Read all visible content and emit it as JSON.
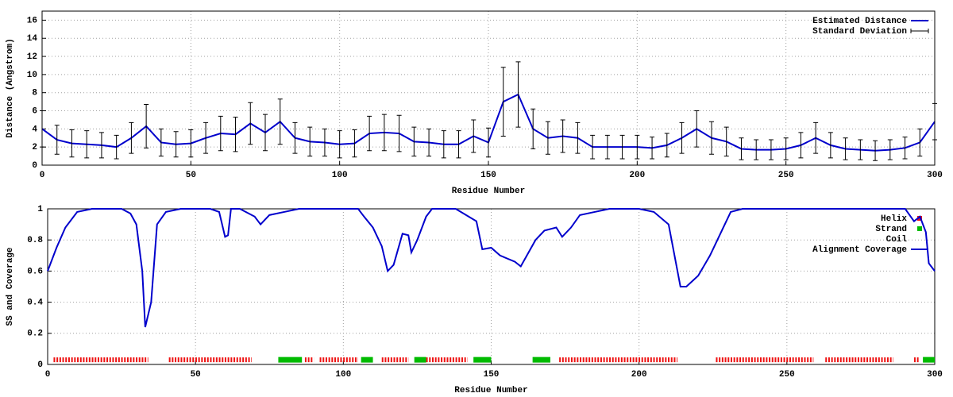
{
  "chart_data": [
    {
      "type": "line",
      "ylabel": "Distance (Angstrom)",
      "xlabel": "Residue Number",
      "xlim": [
        0,
        300
      ],
      "xticks": [
        0,
        50,
        100,
        150,
        200,
        250,
        300
      ],
      "ylim": [
        0,
        17
      ],
      "yticks": [
        0,
        2,
        4,
        6,
        8,
        10,
        12,
        14,
        16
      ],
      "grid": true,
      "legend": "top-right",
      "x": [
        0,
        5,
        10,
        15,
        20,
        25,
        30,
        35,
        40,
        45,
        50,
        55,
        60,
        65,
        70,
        75,
        80,
        85,
        90,
        95,
        100,
        105,
        110,
        115,
        120,
        125,
        130,
        135,
        140,
        145,
        150,
        155,
        160,
        165,
        170,
        175,
        180,
        185,
        190,
        195,
        200,
        205,
        210,
        215,
        220,
        225,
        230,
        235,
        240,
        245,
        250,
        255,
        260,
        265,
        270,
        275,
        280,
        285,
        290,
        295,
        300
      ],
      "series": [
        {
          "name": "Estimated Distance",
          "style": "line",
          "color": "#0000cc",
          "values": [
            4.0,
            2.8,
            2.4,
            2.3,
            2.2,
            2.0,
            3.0,
            4.3,
            2.5,
            2.3,
            2.4,
            3.0,
            3.5,
            3.4,
            4.6,
            3.6,
            4.8,
            3.0,
            2.6,
            2.5,
            2.3,
            2.4,
            3.5,
            3.6,
            3.5,
            2.6,
            2.5,
            2.3,
            2.3,
            3.2,
            2.5,
            7.0,
            7.8,
            4.0,
            3.0,
            3.2,
            3.0,
            2.0,
            2.0,
            2.0,
            2.0,
            1.9,
            2.2,
            3.0,
            4.0,
            3.0,
            2.6,
            1.8,
            1.7,
            1.7,
            1.8,
            2.2,
            3.0,
            2.2,
            1.8,
            1.7,
            1.6,
            1.7,
            1.9,
            2.5,
            4.8
          ]
        },
        {
          "name": "Standard Deviation",
          "style": "errorbar",
          "color": "#000000",
          "values": [
            2.0,
            1.6,
            1.5,
            1.5,
            1.4,
            1.3,
            1.7,
            2.4,
            1.5,
            1.4,
            1.5,
            1.7,
            1.9,
            1.9,
            2.3,
            2.0,
            2.5,
            1.7,
            1.6,
            1.5,
            1.5,
            1.5,
            1.9,
            2.0,
            2.0,
            1.6,
            1.5,
            1.5,
            1.5,
            1.8,
            1.6,
            3.8,
            3.6,
            2.2,
            1.8,
            1.8,
            1.7,
            1.3,
            1.3,
            1.3,
            1.3,
            1.2,
            1.3,
            1.7,
            2.0,
            1.8,
            1.6,
            1.2,
            1.1,
            1.1,
            1.2,
            1.4,
            1.7,
            1.4,
            1.2,
            1.1,
            1.1,
            1.1,
            1.2,
            1.5,
            2.0
          ]
        }
      ]
    },
    {
      "type": "line",
      "ylabel": "SS and Coverage",
      "xlabel": "Residue Number",
      "xlim": [
        0,
        300
      ],
      "xticks": [
        0,
        50,
        100,
        150,
        200,
        250,
        300
      ],
      "ylim": [
        0,
        1
      ],
      "yticks": [
        0,
        0.2,
        0.4,
        0.6,
        0.8,
        1
      ],
      "grid": true,
      "legend": "top-right",
      "series": [
        {
          "name": "Helix",
          "style": "ranges",
          "color": "#ee1111",
          "y": 0.03,
          "ranges": [
            [
              2,
              34
            ],
            [
              41,
              69
            ],
            [
              87,
              90
            ],
            [
              92,
              105
            ],
            [
              113,
              122
            ],
            [
              128,
              142
            ],
            [
              173,
              213
            ],
            [
              226,
              259
            ],
            [
              263,
              286
            ],
            [
              293,
              295
            ]
          ]
        },
        {
          "name": "Strand",
          "style": "ranges",
          "color": "#00bb00",
          "y": 0.03,
          "ranges": [
            [
              78,
              86
            ],
            [
              106,
              110
            ],
            [
              124,
              128
            ],
            [
              144,
              150
            ],
            [
              164,
              170
            ],
            [
              296,
              300
            ]
          ]
        },
        {
          "name": "Coil",
          "style": "hidden"
        },
        {
          "name": "Alignment Coverage",
          "style": "line",
          "color": "#0000cc",
          "x": [
            0,
            3,
            6,
            10,
            15,
            25,
            28,
            30,
            32,
            33,
            35,
            37,
            40,
            45,
            55,
            58,
            60,
            61,
            62,
            65,
            70,
            72,
            75,
            80,
            85,
            95,
            105,
            107,
            110,
            113,
            115,
            117,
            120,
            122,
            123,
            125,
            128,
            130,
            138,
            145,
            147,
            150,
            153,
            158,
            160,
            165,
            168,
            172,
            174,
            177,
            180,
            185,
            190,
            200,
            205,
            210,
            212,
            214,
            216,
            220,
            224,
            228,
            231,
            235,
            290,
            293,
            295,
            297,
            298,
            300
          ],
          "values": [
            0.6,
            0.75,
            0.88,
            0.98,
            1,
            1,
            0.97,
            0.9,
            0.6,
            0.24,
            0.4,
            0.9,
            0.98,
            1,
            1,
            0.98,
            0.82,
            0.83,
            1,
            1,
            0.95,
            0.9,
            0.96,
            0.98,
            1,
            1,
            1,
            0.95,
            0.88,
            0.76,
            0.6,
            0.64,
            0.84,
            0.83,
            0.72,
            0.8,
            0.95,
            1,
            1,
            0.92,
            0.74,
            0.75,
            0.7,
            0.66,
            0.63,
            0.8,
            0.86,
            0.88,
            0.82,
            0.88,
            0.96,
            0.98,
            1,
            1,
            0.98,
            0.9,
            0.7,
            0.5,
            0.5,
            0.57,
            0.7,
            0.86,
            0.98,
            1,
            1,
            0.92,
            0.95,
            0.85,
            0.65,
            0.6
          ]
        }
      ]
    }
  ]
}
